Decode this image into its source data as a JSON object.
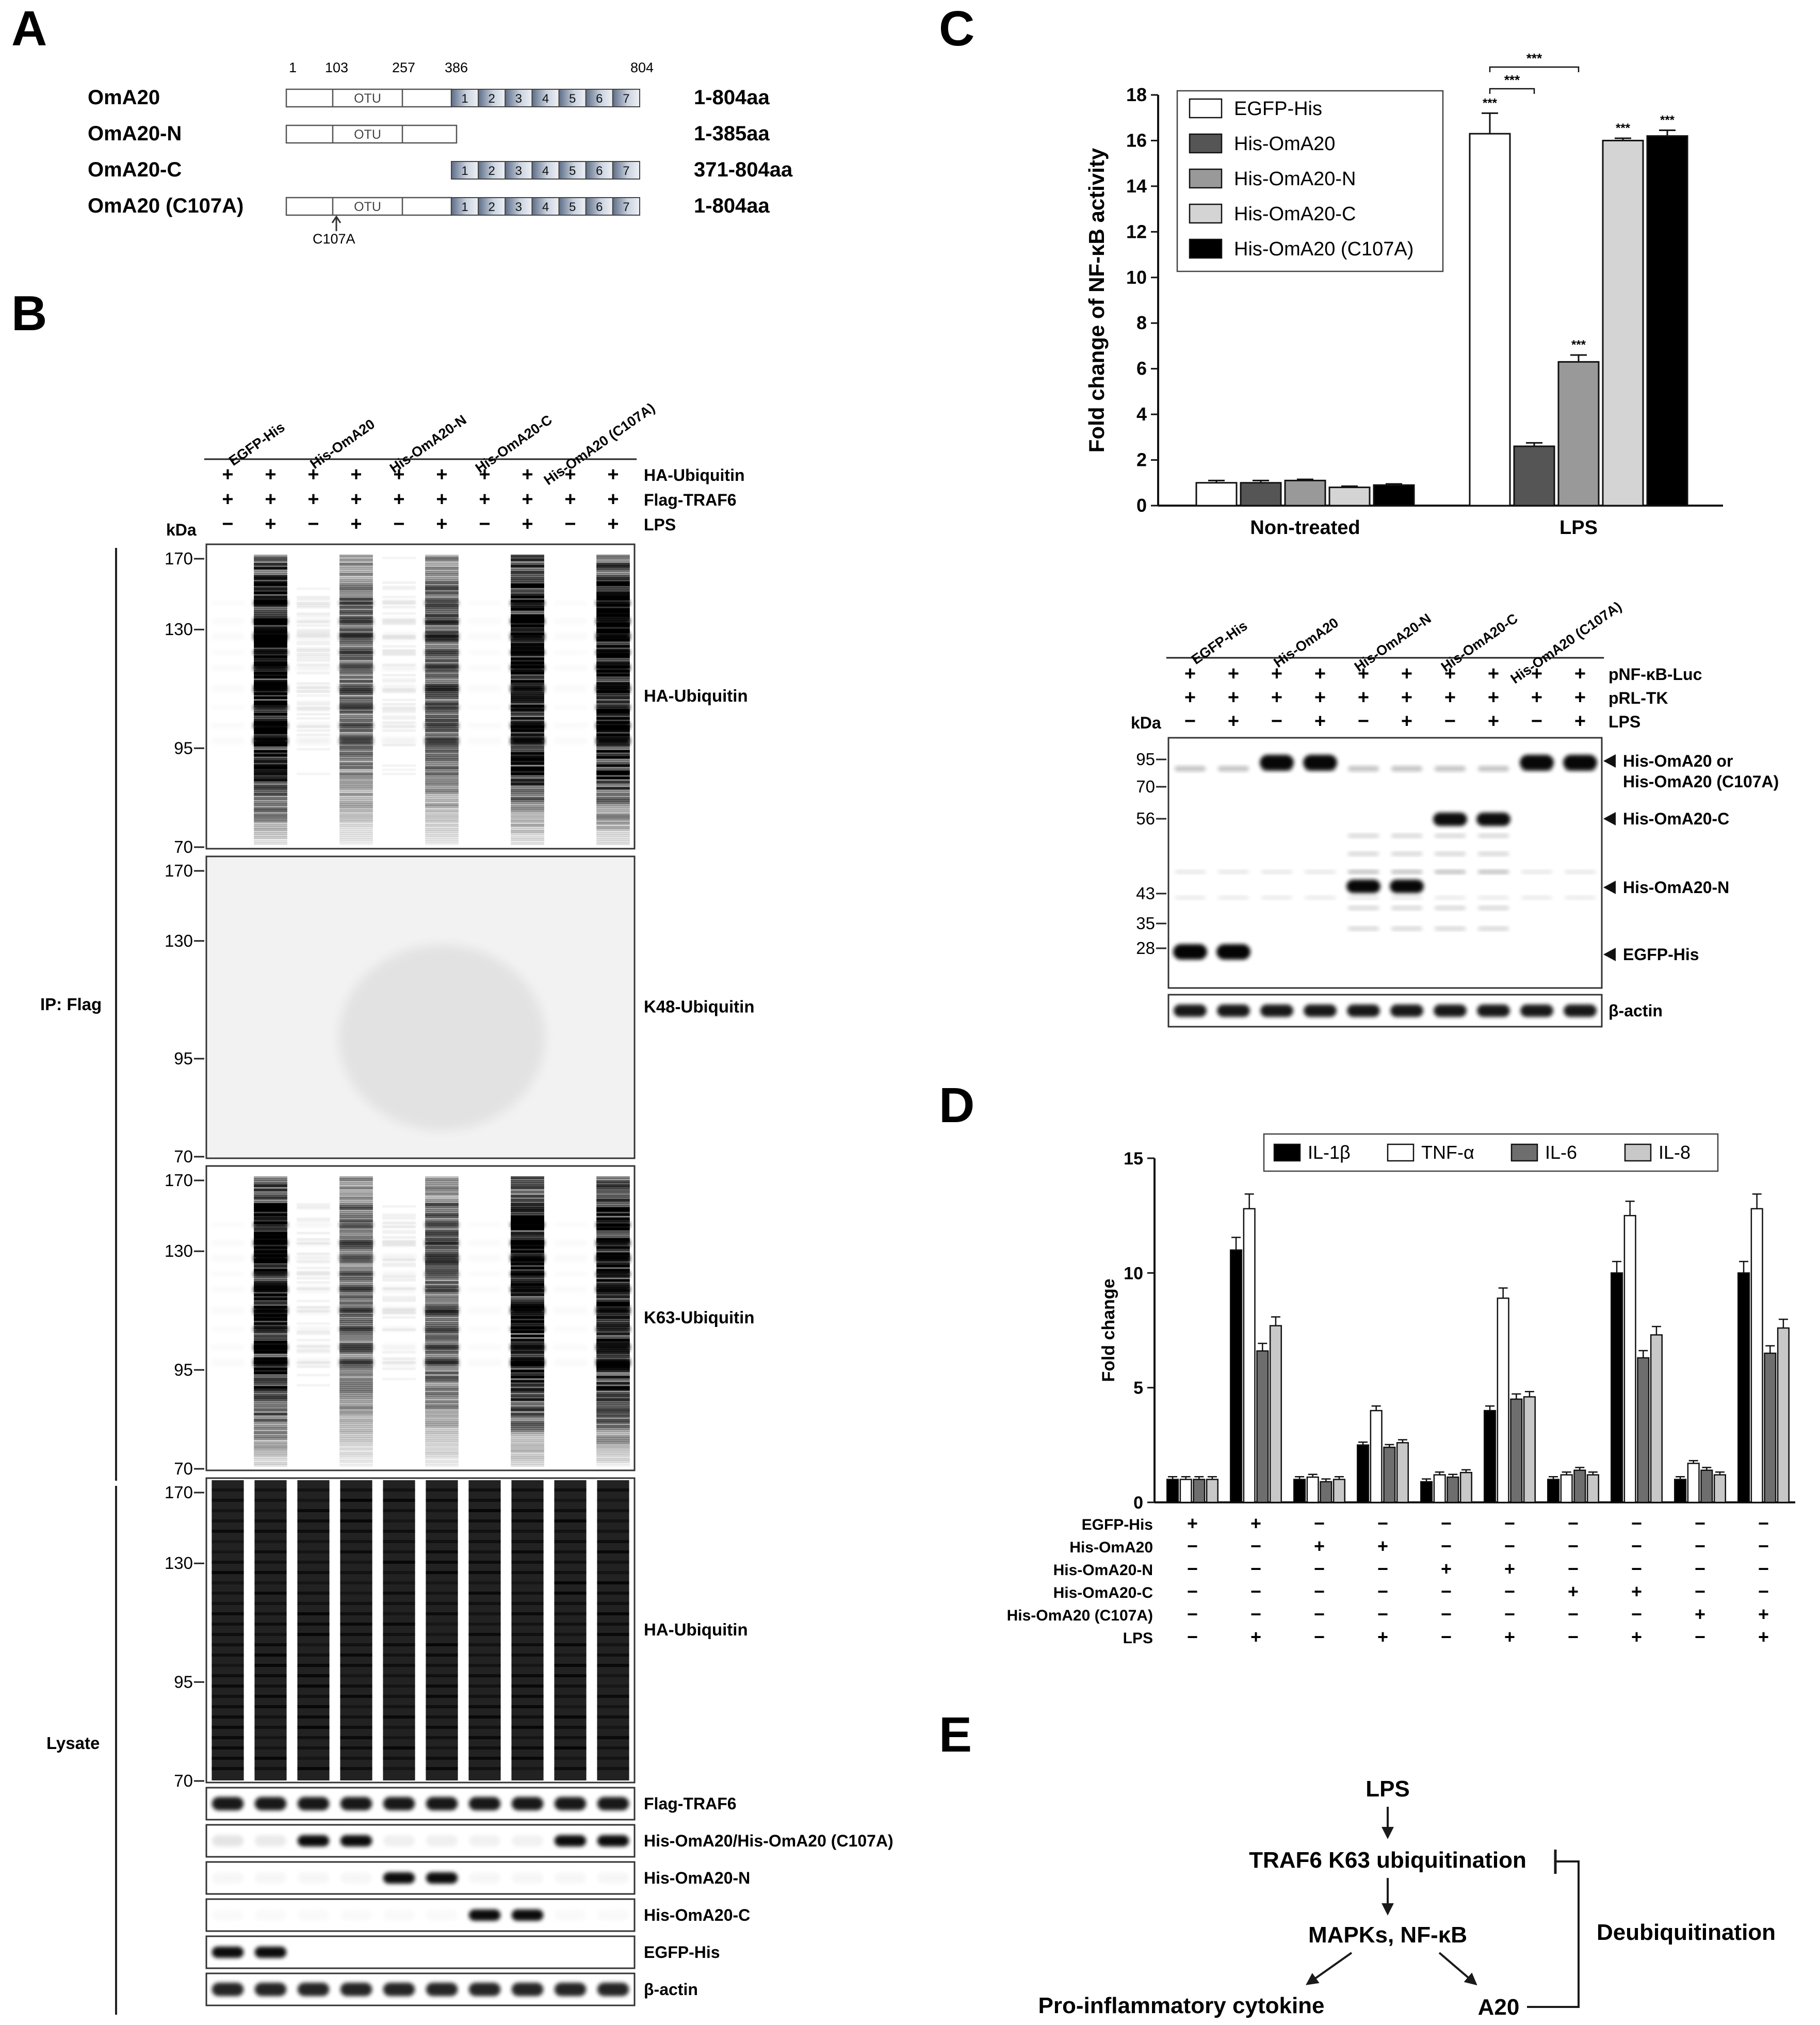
{
  "panel_letters": {
    "A": "A",
    "B": "B",
    "C": "C",
    "D": "D",
    "E": "E"
  },
  "panel_a": {
    "constructs": [
      {
        "name": "OmA20",
        "range": "1-804aa"
      },
      {
        "name": "OmA20-N",
        "range": "1-385aa"
      },
      {
        "name": "OmA20-C",
        "range": "371-804aa"
      },
      {
        "name": "OmA20 (C107A)",
        "range": "1-804aa"
      }
    ],
    "positions": [
      "1",
      "103",
      "257",
      "386",
      "804"
    ],
    "domain_label": "OTU",
    "repeat_labels": [
      "1",
      "2",
      "3",
      "4",
      "5",
      "6",
      "7"
    ],
    "mutation_label": "C107A"
  },
  "panel_b": {
    "lane_groups": [
      "EGFP-His",
      "His-OmA20",
      "His-OmA20-N",
      "His-OmA20-C",
      "His-OmA20 (C107A)"
    ],
    "treatment_rows": [
      {
        "label": "HA-Ubiquitin",
        "signs": [
          "+",
          "+",
          "+",
          "+",
          "+",
          "+",
          "+",
          "+",
          "+",
          "+"
        ]
      },
      {
        "label": "Flag-TRAF6",
        "signs": [
          "+",
          "+",
          "+",
          "+",
          "+",
          "+",
          "+",
          "+",
          "+",
          "+"
        ]
      },
      {
        "label": "LPS",
        "signs": [
          "−",
          "+",
          "−",
          "+",
          "−",
          "+",
          "−",
          "+",
          "−",
          "+"
        ]
      }
    ],
    "kda_label": "kDa",
    "ip_label": "IP: Flag",
    "lysate_label": "Lysate",
    "ip_blots": [
      {
        "label": "HA-Ubiquitin",
        "markers": [
          "170",
          "130",
          "95",
          "70"
        ]
      },
      {
        "label": "K48-Ubiquitin",
        "markers": [
          "170",
          "130",
          "95",
          "70"
        ]
      },
      {
        "label": "K63-Ubiquitin",
        "markers": [
          "170",
          "130",
          "95",
          "70"
        ]
      }
    ],
    "lysate_big_blot": {
      "label": "HA-Ubiquitin",
      "markers": [
        "170",
        "130",
        "95",
        "70"
      ]
    },
    "lysate_strips": [
      "Flag-TRAF6",
      "His-OmA20/His-OmA20 (C107A)",
      "His-OmA20-N",
      "His-OmA20-C",
      "EGFP-His",
      "β-actin"
    ]
  },
  "panel_c": {
    "significance": "***",
    "blot": {
      "lane_groups": [
        "EGFP-His",
        "His-OmA20",
        "His-OmA20-N",
        "His-OmA20-C",
        "His-OmA20 (C107A)"
      ],
      "treatment_rows": [
        {
          "label": "pNF-κB-Luc",
          "signs": [
            "+",
            "+",
            "+",
            "+",
            "+",
            "+",
            "+",
            "+",
            "+",
            "+"
          ]
        },
        {
          "label": "pRL-TK",
          "signs": [
            "+",
            "+",
            "+",
            "+",
            "+",
            "+",
            "+",
            "+",
            "+",
            "+"
          ]
        },
        {
          "label": "LPS",
          "signs": [
            "−",
            "+",
            "−",
            "+",
            "−",
            "+",
            "−",
            "+",
            "−",
            "+"
          ]
        }
      ],
      "kda_label": "kDa",
      "markers": [
        "95",
        "70",
        "56",
        "43",
        "35",
        "28"
      ],
      "band_labels": [
        "His-OmA20 or",
        "His-OmA20 (C107A)",
        "His-OmA20-C",
        "His-OmA20-N",
        "EGFP-His"
      ],
      "actin_label": "β-actin"
    }
  },
  "panel_d": {
    "treatment_rows": [
      {
        "label": "EGFP-His",
        "signs": [
          "+",
          "+",
          "−",
          "−",
          "−",
          "−",
          "−",
          "−",
          "−",
          "−"
        ]
      },
      {
        "label": "His-OmA20",
        "signs": [
          "−",
          "−",
          "+",
          "+",
          "−",
          "−",
          "−",
          "−",
          "−",
          "−"
        ]
      },
      {
        "label": "His-OmA20-N",
        "signs": [
          "−",
          "−",
          "−",
          "−",
          "+",
          "+",
          "−",
          "−",
          "−",
          "−"
        ]
      },
      {
        "label": "His-OmA20-C",
        "signs": [
          "−",
          "−",
          "−",
          "−",
          "−",
          "−",
          "+",
          "+",
          "−",
          "−"
        ]
      },
      {
        "label": "His-OmA20 (C107A)",
        "signs": [
          "−",
          "−",
          "−",
          "−",
          "−",
          "−",
          "−",
          "−",
          "+",
          "+"
        ]
      },
      {
        "label": "LPS",
        "signs": [
          "−",
          "+",
          "−",
          "+",
          "−",
          "+",
          "−",
          "+",
          "−",
          "+"
        ]
      }
    ]
  },
  "panel_e": {
    "nodes": {
      "lps": "LPS",
      "traf6": "TRAF6 K63 ubiquitination",
      "mapks": "MAPKs, NF-κB",
      "cytokine": "Pro-inflammatory cytokine",
      "a20": "A20",
      "deubiq": "Deubiquitination"
    }
  },
  "chart_data": [
    {
      "type": "bar",
      "panel": "C",
      "title": "",
      "ylabel": "Fold change of NF-κB activity",
      "xlabel": "",
      "ylim": [
        0,
        18
      ],
      "yticks": [
        0,
        2,
        4,
        6,
        8,
        10,
        12,
        14,
        16,
        18
      ],
      "categories": [
        "Non-treated",
        "LPS"
      ],
      "legend_position": "top-left",
      "series": [
        {
          "name": "EGFP-His",
          "color": "#ffffff",
          "values": [
            1.0,
            16.3
          ],
          "errors": [
            0.1,
            0.9
          ]
        },
        {
          "name": "His-OmA20",
          "color": "#555555",
          "values": [
            1.0,
            2.6
          ],
          "errors": [
            0.1,
            0.15
          ]
        },
        {
          "name": "His-OmA20-N",
          "color": "#999999",
          "values": [
            1.1,
            6.3
          ],
          "errors": [
            0.05,
            0.3
          ]
        },
        {
          "name": "His-OmA20-C",
          "color": "#d4d4d4",
          "values": [
            0.8,
            16.0
          ],
          "errors": [
            0.05,
            0.1
          ]
        },
        {
          "name": "His-OmA20 (C107A)",
          "color": "#000000",
          "values": [
            0.9,
            16.2
          ],
          "errors": [
            0.05,
            0.25
          ]
        }
      ]
    },
    {
      "type": "bar",
      "panel": "D",
      "title": "",
      "ylabel": "Fold change",
      "xlabel": "",
      "ylim": [
        0,
        15
      ],
      "yticks": [
        0,
        5,
        10,
        15
      ],
      "legend_position": "top",
      "series": [
        {
          "name": "IL-1β",
          "color": "#000000",
          "values": [
            1.0,
            11.0,
            1.0,
            2.5,
            0.9,
            4.0,
            1.0,
            10.0,
            1.0,
            10.0
          ]
        },
        {
          "name": "TNF-α",
          "color": "#ffffff",
          "values": [
            1.0,
            12.8,
            1.1,
            4.0,
            1.2,
            8.9,
            1.2,
            12.5,
            1.7,
            12.8
          ]
        },
        {
          "name": "IL-6",
          "color": "#6e6e6e",
          "values": [
            1.0,
            6.6,
            0.9,
            2.4,
            1.1,
            4.5,
            1.4,
            6.3,
            1.4,
            6.5
          ]
        },
        {
          "name": "IL-8",
          "color": "#c8c8c8",
          "values": [
            1.0,
            7.7,
            1.0,
            2.6,
            1.3,
            4.6,
            1.2,
            7.3,
            1.2,
            7.6
          ]
        }
      ]
    }
  ]
}
